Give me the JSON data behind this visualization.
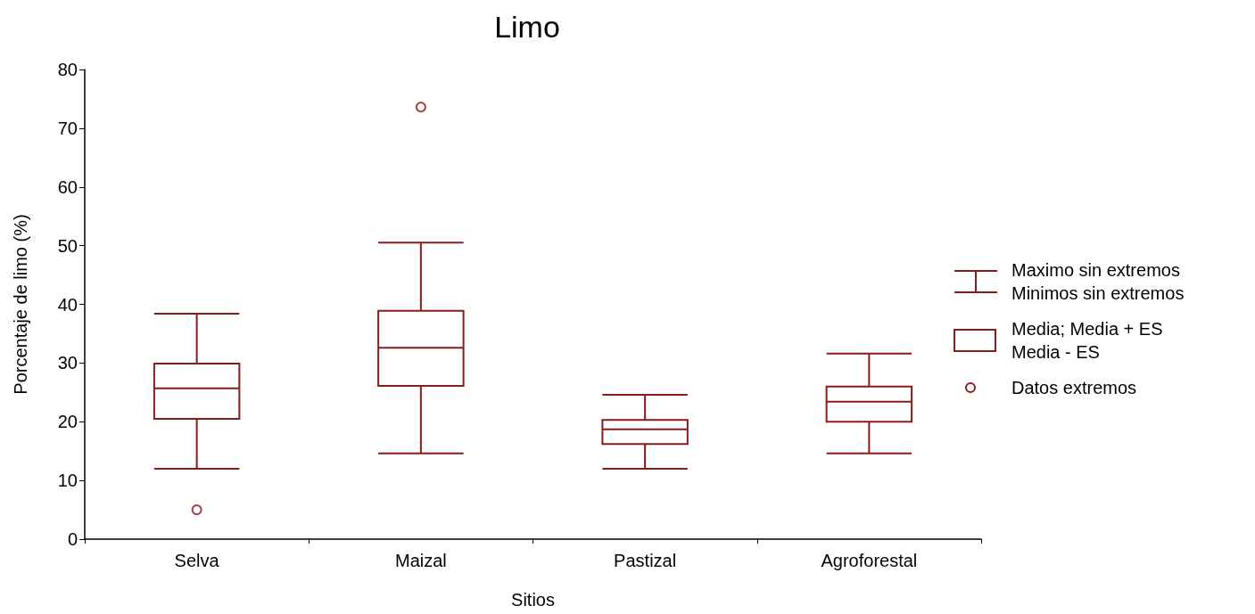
{
  "chart_data": {
    "type": "box",
    "title": "Limo",
    "xlabel": "Sitios",
    "ylabel": "Porcentaje de limo (%)",
    "categories": [
      "Selva",
      "Maizal",
      "Pastizal",
      "Agroforestal"
    ],
    "boxes": [
      {
        "low": 12.0,
        "q1": 20.5,
        "median": 25.7,
        "q3": 29.9,
        "high": 38.4,
        "outliers": [
          5.0
        ]
      },
      {
        "low": 14.6,
        "q1": 26.1,
        "median": 32.6,
        "q3": 38.9,
        "high": 50.5,
        "outliers": [
          73.6
        ]
      },
      {
        "low": 12.0,
        "q1": 16.2,
        "median": 18.7,
        "q3": 20.3,
        "high": 24.6
      },
      {
        "low": 14.6,
        "q1": 20.0,
        "median": 23.4,
        "q3": 26.0,
        "high": 31.6
      }
    ],
    "color": "#8b1a1a",
    "ylim": [
      0,
      80
    ],
    "yticks": [
      0,
      10,
      20,
      30,
      40,
      50,
      60,
      70,
      80
    ],
    "grid": false,
    "annotations": [
      "Maximo sin extremos\nMinimos sin extremos",
      "Media; Media + ES\nMedia - ES",
      "Datos extremos"
    ]
  }
}
